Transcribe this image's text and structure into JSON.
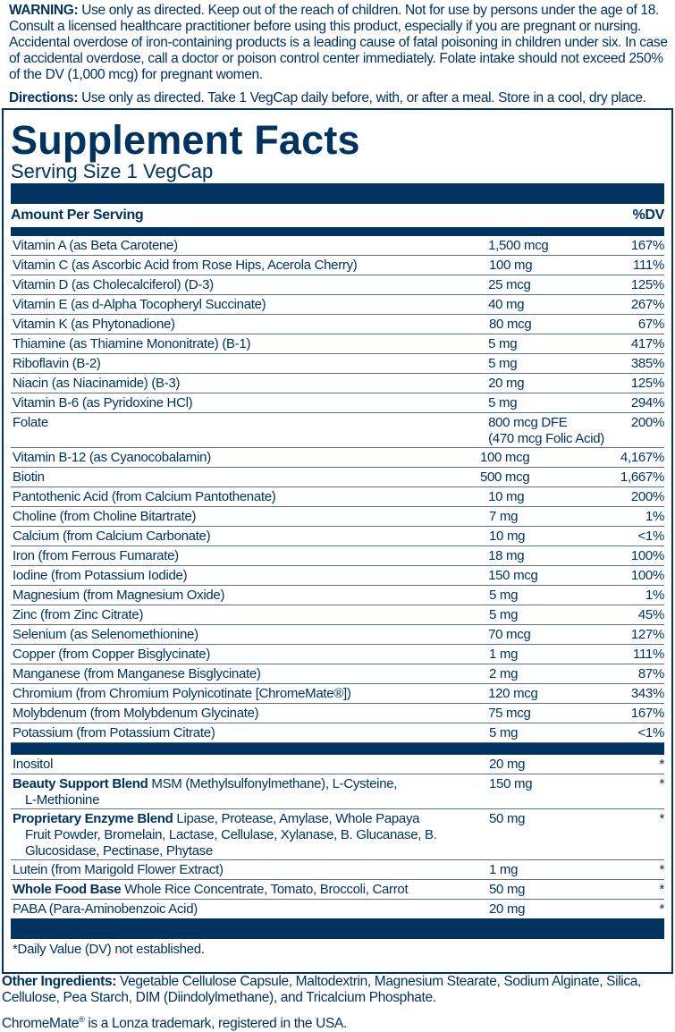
{
  "warning": {
    "label": "WARNING:",
    "text": " Use only as directed.  Keep out of the reach of children. Not for use by persons under the age of 18.  Consult a licensed healthcare practitioner before using this product, especially if you are pregnant or nursing.  Accidental overdose of iron-containing products is a leading cause of fatal poisoning in children under six.  In case of accidental overdose, call a doctor or poison control center immediately. Folate intake should not exceed 250% of the DV (1,000 mcg) for pregnant women."
  },
  "directions": {
    "label": "Directions:",
    "text": " Use only as directed. Take 1 VegCap daily before, with, or after a meal. Store in a cool, dry place."
  },
  "facts": {
    "title": "Supplement Facts",
    "serving_size": "Serving Size 1 VegCap",
    "amount_header": "Amount Per Serving",
    "dv_header": "%DV",
    "colors": {
      "primary": "#003360"
    },
    "rows": [
      {
        "name": "Vitamin A (as Beta Carotene)",
        "amount": "1,500 mcg",
        "dv": "167%"
      },
      {
        "name": "Vitamin C (as Ascorbic Acid from Rose Hips, Acerola Cherry)",
        "amount": "100 mg",
        "dv": "111%"
      },
      {
        "name": "Vitamin D (as Cholecalciferol) (D-3)",
        "amount": "25 mcg",
        "dv": "125%"
      },
      {
        "name": "Vitamin E (as d-Alpha Tocopheryl Succinate)",
        "amount": "40 mg",
        "dv": "267%"
      },
      {
        "name": "Vitamin K (as Phytonadione)",
        "amount": "80 mcg",
        "dv": "67%"
      },
      {
        "name": "Thiamine (as Thiamine Mononitrate) (B-1)",
        "amount": "5 mg",
        "dv": "417%"
      },
      {
        "name": "Riboflavin (B-2)",
        "amount": "5 mg",
        "dv": "385%"
      },
      {
        "name": "Niacin (as Niacinamide) (B-3)",
        "amount": "20 mg",
        "dv": "125%"
      },
      {
        "name": "Vitamin B-6 (as Pyridoxine HCl)",
        "amount": "5 mg",
        "dv": "294%"
      },
      {
        "name": "Folate",
        "amount": "800 mcg DFE",
        "amount2": "(470 mcg Folic Acid)",
        "dv": "200%"
      },
      {
        "name": "Vitamin B-12 (as Cyanocobalamin)",
        "amount": "100 mcg",
        "dv": "4,167%"
      },
      {
        "name": "Biotin",
        "amount": "500 mcg",
        "dv": "1,667%"
      },
      {
        "name": "Pantothenic Acid (from Calcium Pantothenate)",
        "amount": "10 mg",
        "dv": "200%"
      },
      {
        "name": "Choline (from Choline Bitartrate)",
        "amount": "7 mg",
        "dv": "1%"
      },
      {
        "name": "Calcium (from Calcium Carbonate)",
        "amount": "10 mg",
        "dv": "<1%"
      },
      {
        "name": "Iron (from Ferrous Fumarate)",
        "amount": "18 mg",
        "dv": "100%"
      },
      {
        "name": "Iodine (from Potassium Iodide)",
        "amount": "150 mcg",
        "dv": "100%"
      },
      {
        "name": "Magnesium (from Magnesium Oxide)",
        "amount": "5 mg",
        "dv": "1%"
      },
      {
        "name": "Zinc (from Zinc Citrate)",
        "amount": "5 mg",
        "dv": "45%"
      },
      {
        "name": "Selenium (as Selenomethionine)",
        "amount": "70 mcg",
        "dv": "127%"
      },
      {
        "name": "Copper (from Copper Bisglycinate)",
        "amount": "1 mg",
        "dv": "111%"
      },
      {
        "name": "Manganese (from Manganese Bisglycinate)",
        "amount": "2 mg",
        "dv": "87%"
      },
      {
        "name": "Chromium (from Chromium Polynicotinate [ChromeMate®])",
        "amount": "120 mcg",
        "dv": "343%"
      },
      {
        "name": "Molybdenum (from Molybdenum Glycinate)",
        "amount": "75 mcg",
        "dv": "167%"
      },
      {
        "name": "Potassium (from Potassium Citrate)",
        "amount": "5 mg",
        "dv": "<1%"
      }
    ],
    "rows2": [
      {
        "bold": "",
        "name": "Inositol",
        "cont": "",
        "amount": "20 mg",
        "dv": "*"
      },
      {
        "bold": "Beauty Support Blend",
        "name": " MSM (Methylsulfonylmethane), L-Cysteine,",
        "cont": "L-Methionine",
        "amount": "150 mg",
        "dv": "*"
      },
      {
        "bold": "Proprietary Enzyme Blend",
        "name": " Lipase, Protease, Amylase, Whole Papaya",
        "cont": "Fruit Powder, Bromelain, Lactase, Cellulase, Xylanase, B. Glucanase, B. Glucosidase, Pectinase, Phytase",
        "amount": "50 mg",
        "dv": "*"
      },
      {
        "bold": "",
        "name": "Lutein (from Marigold Flower Extract)",
        "cont": "",
        "amount": "1 mg",
        "dv": "*"
      },
      {
        "bold": "Whole Food Base",
        "name": " Whole Rice Concentrate, Tomato, Broccoli, Carrot",
        "cont": "",
        "amount": "50 mg",
        "dv": "*"
      },
      {
        "bold": "",
        "name": "PABA (Para-Aminobenzoic Acid)",
        "cont": "",
        "amount": "20 mg",
        "dv": "*"
      }
    ],
    "footnote": "*Daily Value (DV) not established."
  },
  "other_ingredients": {
    "label": "Other Ingredients:",
    "text": " Vegetable Cellulose Capsule, Maltodextrin, Magnesium Stearate, Sodium Alginate, Silica, Cellulose, Pea Starch, DIM (Diindolylmethane), and Tricalcium Phosphate."
  },
  "trademark": {
    "brand": "ChromeMate",
    "mark": "®",
    "text": " is a Lonza trademark, registered in the USA."
  }
}
